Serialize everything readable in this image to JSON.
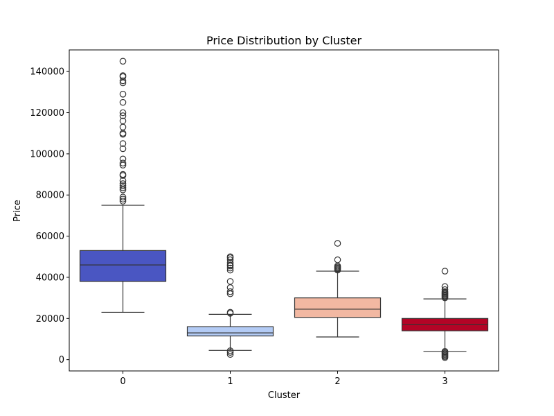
{
  "chart_data": {
    "type": "box",
    "title": "Price Distribution by Cluster",
    "xlabel": "Cluster",
    "ylabel": "Price",
    "ylim": [
      -5500,
      150500
    ],
    "yticks": [
      0,
      20000,
      40000,
      60000,
      80000,
      100000,
      120000,
      140000
    ],
    "ytick_labels": [
      "0",
      "20000",
      "40000",
      "60000",
      "80000",
      "100000",
      "120000",
      "140000"
    ],
    "grid": false,
    "categories": [
      "0",
      "1",
      "2",
      "3"
    ],
    "boxes": [
      {
        "category": "0",
        "color": "#4a56c2",
        "whisker_low": 23000,
        "q1": 38000,
        "median": 46000,
        "q3": 53000,
        "whisker_high": 75000,
        "outliers": [
          77000,
          78000,
          79000,
          82500,
          83500,
          84500,
          85500,
          87000,
          89500,
          90000,
          94500,
          95500,
          97500,
          102500,
          105000,
          109500,
          110000,
          113000,
          116000,
          118500,
          120000,
          125000,
          129000,
          134500,
          135500,
          137500,
          138000,
          145000
        ]
      },
      {
        "category": "1",
        "color": "#b3cbf5",
        "whisker_low": 4500,
        "q1": 11500,
        "median": 13000,
        "q3": 16000,
        "whisker_high": 22000,
        "outliers": [
          2500,
          3500,
          4300,
          22500,
          23000,
          32000,
          33000,
          35000,
          38000,
          43500,
          44500,
          45500,
          46000,
          47000,
          48500,
          49500,
          50000
        ]
      },
      {
        "category": "2",
        "color": "#f2b8a2",
        "whisker_low": 11000,
        "q1": 20500,
        "median": 24500,
        "q3": 30000,
        "whisker_high": 43000,
        "outliers": [
          43500,
          44000,
          44500,
          45000,
          45500,
          48500,
          56500
        ]
      },
      {
        "category": "3",
        "color": "#b40426",
        "whisker_low": 4000,
        "q1": 14000,
        "median": 17000,
        "q3": 20000,
        "whisker_high": 29500,
        "outliers": [
          1000,
          1500,
          2000,
          2500,
          3000,
          3500,
          4000,
          30000,
          30500,
          31000,
          31500,
          32000,
          32500,
          33000,
          34000,
          35500,
          43000
        ]
      }
    ]
  }
}
